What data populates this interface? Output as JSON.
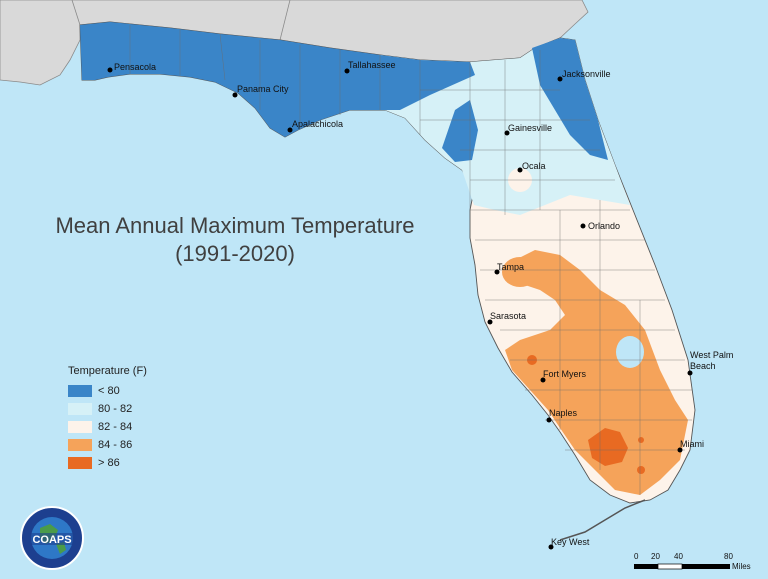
{
  "title": {
    "line1": "Mean Annual Maximum Temperature",
    "line2": "(1991-2020)"
  },
  "legend": {
    "title": "Temperature (F)",
    "items": [
      {
        "label": "< 80",
        "color": "#3a85c8"
      },
      {
        "label": "80 - 82",
        "color": "#d6f1f7"
      },
      {
        "label": "82 - 84",
        "color": "#fdf3ea"
      },
      {
        "label": "84 - 86",
        "color": "#f5a35a"
      },
      {
        "label": "> 86",
        "color": "#e86a22"
      }
    ]
  },
  "cities": [
    {
      "name": "Pensacola"
    },
    {
      "name": "Tallahassee"
    },
    {
      "name": "Panama City"
    },
    {
      "name": "Apalachicola"
    },
    {
      "name": "Jacksonville"
    },
    {
      "name": "Gainesville"
    },
    {
      "name": "Ocala"
    },
    {
      "name": "Orlando"
    },
    {
      "name": "Tampa"
    },
    {
      "name": "Sarasota"
    },
    {
      "name": "West Palm Beach"
    },
    {
      "name": "Fort Myers"
    },
    {
      "name": "Naples"
    },
    {
      "name": "Miami"
    },
    {
      "name": "Key West"
    }
  ],
  "scale_bar": {
    "ticks": [
      "0",
      "20",
      "40",
      "80"
    ],
    "unit": "Miles"
  },
  "logo": {
    "text": "COAPS"
  },
  "colors": {
    "ocean": "#bfe6f7",
    "land_other": "#d9d9d9"
  }
}
